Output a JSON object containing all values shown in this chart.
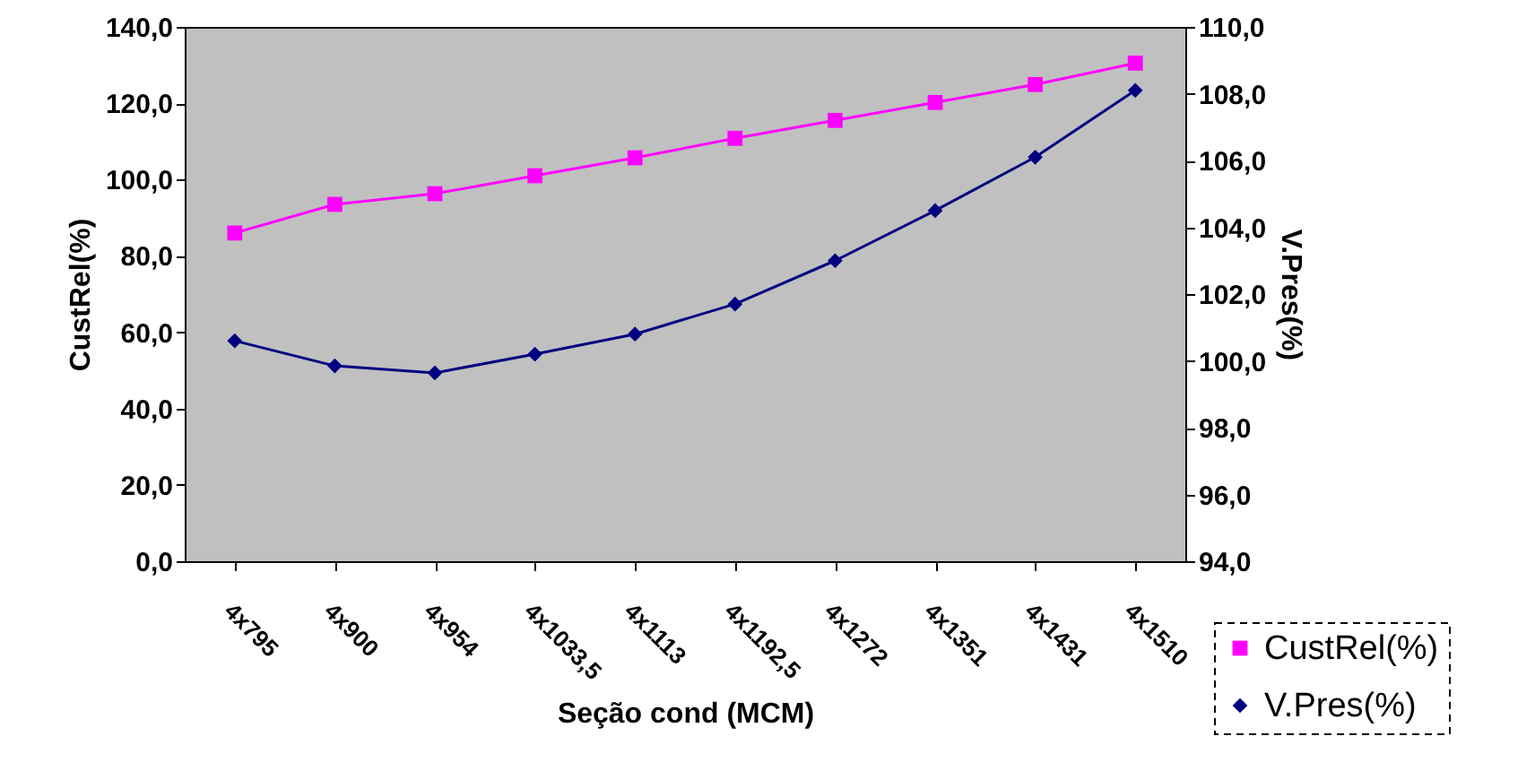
{
  "chart_data": {
    "type": "line",
    "categories": [
      "4x795",
      "4x900",
      "4x954",
      "4x1033,5",
      "4x1113",
      "4x1192,5",
      "4x1272",
      "4x1351",
      "4x1431",
      "4x1510"
    ],
    "series": [
      {
        "name": "CustRel(%)",
        "color": "#ff00ff",
        "marker": "square",
        "values": [
          86,
          93.5,
          96.3,
          101,
          105.7,
          110.8,
          115.5,
          120.2,
          124.9,
          130.5
        ]
      },
      {
        "name": "V.Pres(%)",
        "color": "#000080",
        "marker": "diamond",
        "axis": "y2",
        "values": [
          100.6,
          99.85,
          99.64,
          100.2,
          100.8,
          101.7,
          103.0,
          104.5,
          106.1,
          108.1
        ]
      }
    ],
    "xlabel": "Seção cond (MCM)",
    "ylabel": "CustRel(%)",
    "y2label": "V.Pres(%)",
    "ylim": [
      0,
      140
    ],
    "yticks": [
      {
        "value": 0,
        "label": "0,0"
      },
      {
        "value": 20,
        "label": "20,0"
      },
      {
        "value": 40,
        "label": "40,0"
      },
      {
        "value": 60,
        "label": "60,0"
      },
      {
        "value": 80,
        "label": "80,0"
      },
      {
        "value": 100,
        "label": "100,0"
      },
      {
        "value": 120,
        "label": "120,0"
      },
      {
        "value": 140,
        "label": "140,0"
      }
    ],
    "y2lim": [
      94,
      110
    ],
    "y2ticks": [
      {
        "value": 94,
        "label": "94,0"
      },
      {
        "value": 96,
        "label": "96,0"
      },
      {
        "value": 98,
        "label": "98,0"
      },
      {
        "value": 100,
        "label": "100,0"
      },
      {
        "value": 102,
        "label": "102,0"
      },
      {
        "value": 104,
        "label": "104,0"
      },
      {
        "value": 106,
        "label": "106,0"
      },
      {
        "value": 108,
        "label": "108,0"
      },
      {
        "value": 110,
        "label": "110,0"
      }
    ],
    "grid": false,
    "legend": "bottom right",
    "line_style": "solid"
  }
}
